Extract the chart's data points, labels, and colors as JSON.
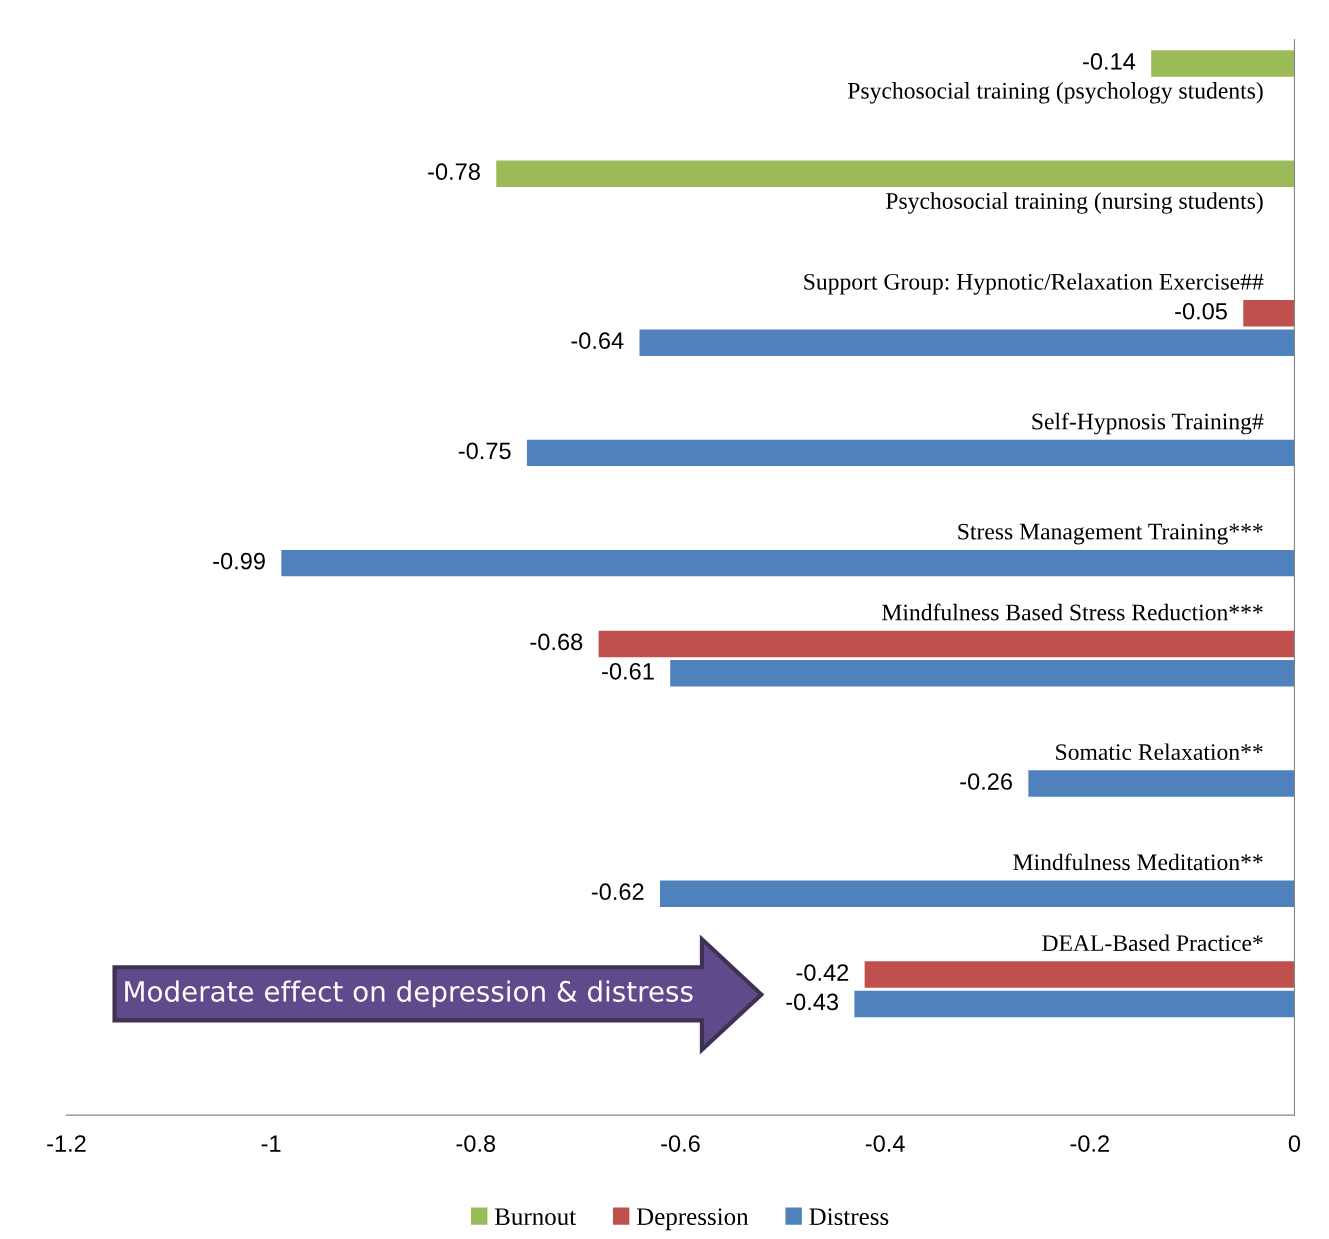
{
  "chart_data": {
    "type": "bar",
    "orientation": "horizontal",
    "categories": [
      "Psychosocial training (psychology students)",
      "Psychosocial training (nursing students)",
      "Support Group: Hypnotic/Relaxation Exercise##",
      "Self-Hypnosis Training#",
      "Stress Management Training***",
      "Mindfulness Based Stress Reduction***",
      "Somatic Relaxation**",
      "Mindfulness Meditation**",
      "DEAL-Based Practice*"
    ],
    "series": [
      {
        "name": "Burnout",
        "color": "#9bbb59",
        "values": [
          -0.14,
          -0.78,
          null,
          null,
          null,
          null,
          null,
          null,
          null
        ]
      },
      {
        "name": "Depression",
        "color": "#c0504d",
        "values": [
          null,
          null,
          -0.05,
          null,
          null,
          -0.68,
          null,
          null,
          -0.42
        ]
      },
      {
        "name": "Distress",
        "color": "#4f81bd",
        "values": [
          null,
          null,
          -0.64,
          -0.75,
          -0.99,
          -0.61,
          -0.26,
          -0.62,
          -0.43
        ]
      }
    ],
    "xlim": [
      -1.2,
      0
    ],
    "xticks": [
      -1.2,
      -1,
      -0.8,
      -0.6,
      -0.4,
      -0.2,
      0
    ],
    "data_labels": true,
    "legend": "bottom",
    "grid": false,
    "annotations": [
      "Moderate effect on depression & distress"
    ]
  }
}
